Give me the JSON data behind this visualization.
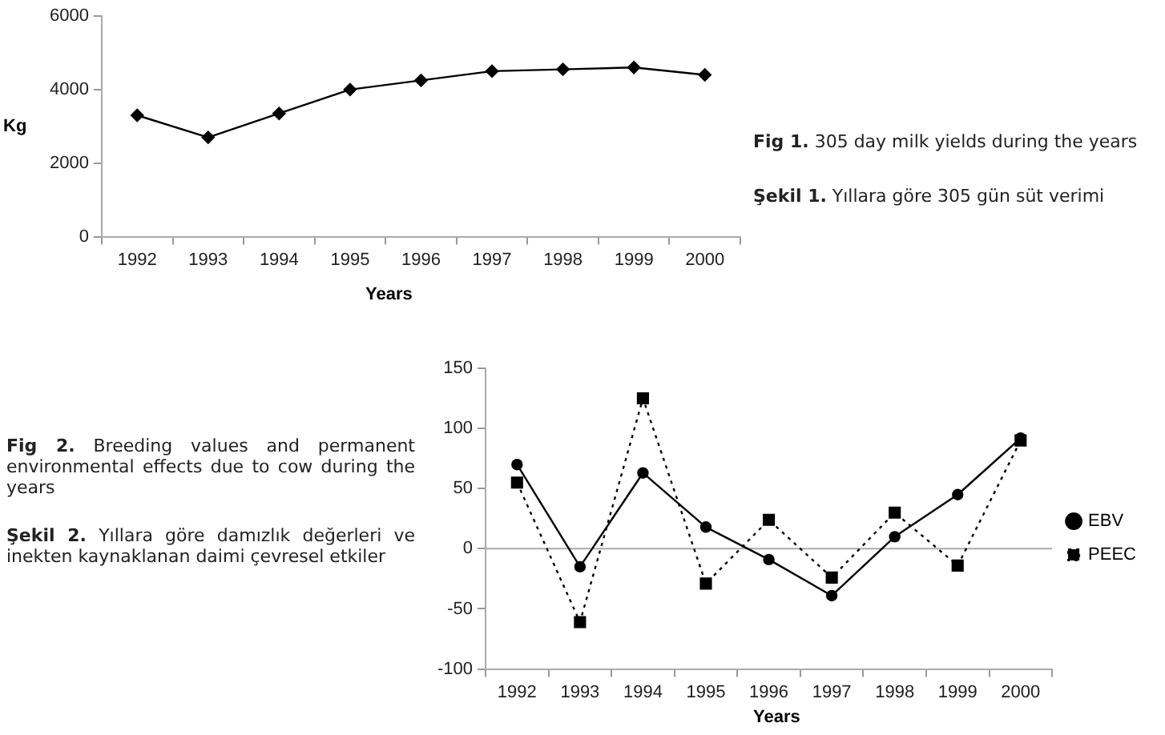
{
  "chart_data": [
    {
      "type": "line",
      "xlabel": "Years",
      "ylabel": "Kg",
      "categories": [
        "1992",
        "1993",
        "1994",
        "1995",
        "1996",
        "1997",
        "1998",
        "1999",
        "2000"
      ],
      "series": [
        {
          "color": "#000000",
          "marker": "diamond",
          "line_style": "solid",
          "values": [
            3300,
            2700,
            3350,
            4000,
            4250,
            4500,
            4550,
            4600,
            4400
          ]
        }
      ],
      "ylim": [
        0,
        6000
      ],
      "yticks": [
        0,
        2000,
        4000,
        6000
      ],
      "grid": false,
      "legend": false,
      "annotations": [
        "**Fig 1.** 305 day milk yields during the years",
        "**Şekil 1.**  Yıllara göre 305 gün süt verimi"
      ]
    },
    {
      "type": "line",
      "xlabel": "Years",
      "categories": [
        "1992",
        "1993",
        "1994",
        "1995",
        "1996",
        "1997",
        "1998",
        "1999",
        "2000"
      ],
      "series": [
        {
          "name": "EBV",
          "color": "#000000",
          "marker": "circle",
          "line_style": "solid",
          "values": [
            70,
            -15,
            63,
            18,
            -9,
            -39,
            10,
            45,
            92
          ]
        },
        {
          "name": "PEEC",
          "color": "#000000",
          "marker": "square",
          "line_style": "dotted",
          "values": [
            55,
            -61,
            125,
            -29,
            24,
            -24,
            30,
            -14,
            90
          ]
        }
      ],
      "ylim": [
        -100,
        150
      ],
      "yticks": [
        -100,
        -50,
        0,
        50,
        100,
        150
      ],
      "grid": false,
      "legend": "right",
      "ref_lines": [
        {
          "axis": "y",
          "value": 0,
          "color": "#aaaaaa"
        }
      ],
      "annotations": [
        "**Fig 2.** Breeding values and permanent environmental effects due to cow during the years",
        "**Şekil 2.** Yıllara göre damızlık değerleri ve inekten kaynaklanan daimi çevresel etkiler"
      ]
    }
  ]
}
